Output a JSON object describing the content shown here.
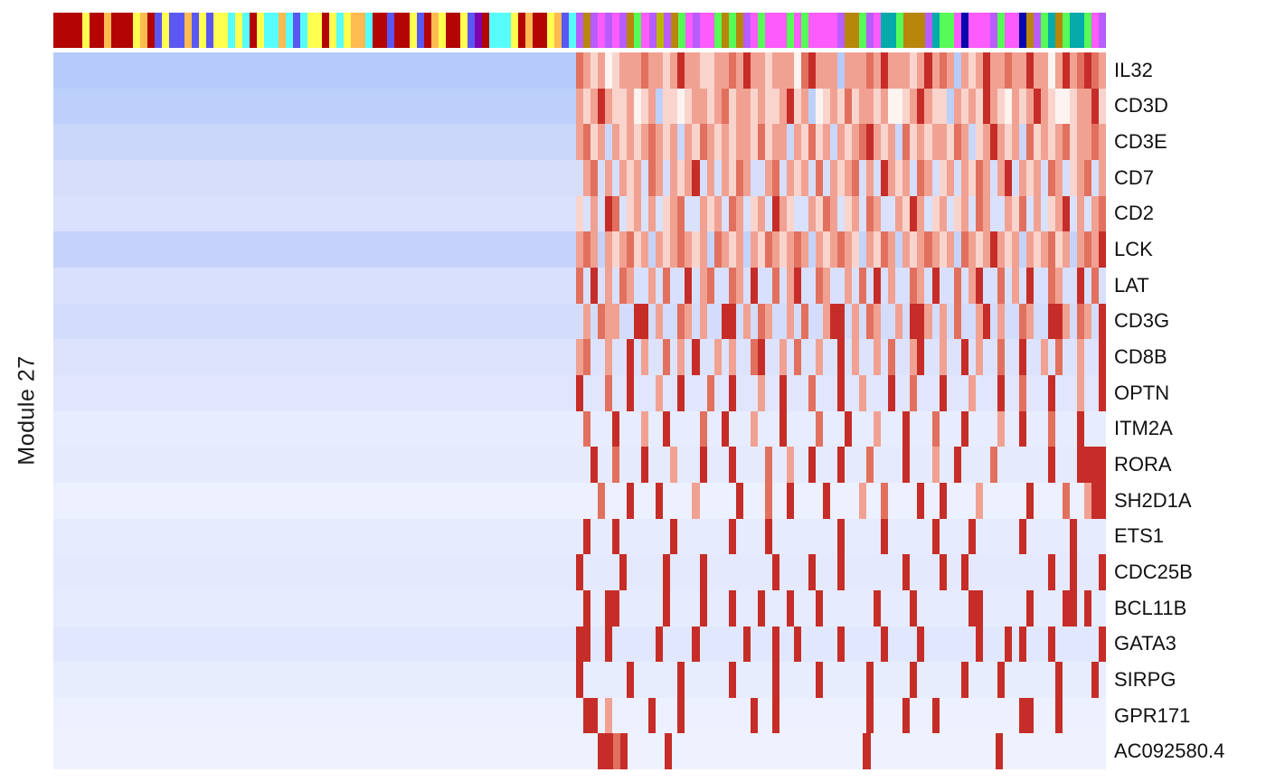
{
  "chart_data": {
    "type": "heatmap",
    "title": "",
    "xlabel": "",
    "ylabel": "Module 27",
    "legend": "none",
    "grid": "off",
    "n_columns": 145,
    "expression_start_column": 72,
    "genes": [
      "IL32",
      "CD3D",
      "CD3E",
      "CD7",
      "CD2",
      "LCK",
      "LAT",
      "CD3G",
      "CD8B",
      "OPTN",
      "ITM2A",
      "RORA",
      "SH2D1A",
      "ETS1",
      "CDC25B",
      "BCL11B",
      "GATA3",
      "SIRPG",
      "GPR171",
      "AC092580.4"
    ],
    "row_base_colors": [
      "#b7cbfa",
      "#bdd0fb",
      "#cbd6fb",
      "#d6defc",
      "#d9e1fd",
      "#c5d3fb",
      "#d9e0fd",
      "#d4dcfc",
      "#dde3fd",
      "#e1e6fd",
      "#e7ecfe",
      "#e6eafd",
      "#edf0fe",
      "#e6ebfd",
      "#e5e9fd",
      "#e7ebfe",
      "#e1e7fd",
      "#e8edfe",
      "#edf0fe",
      "#eef1fe"
    ],
    "intensity_colormap": {
      ".": "transparent",
      "w": "#fdf3f0",
      "a": "#f9d4cc",
      "b": "#f1a192",
      "c": "#e2705e",
      "d": "#c62d28"
    },
    "row_patterns": [
      "cbabwabbbcbbabdbbaabbcbdbbabbbwcdbbb.bbbcbdbbbabdbcb.babdbbcbbdbbwbdbcdcb",
      "babdbaabwab.aawabbabcabbabaabdab.wabacabbabwwabdbaa.babadbawbabdbawwabbda",
      "bcab.bababcbab.bacbababbacabb.bacab.babcdbab.cababbacb.abdbab.cababcabbcb",
      ".bc.b.bab.cb.babd.b.bacb..bc.bab.c.babc.b.dbab.cb.ab.bacb.bd.bab.cb.abc.b",
      "a.b.dc.ab.b.abc..bab.cb.ab.dba..bacb.ab.cb..badb.ab.ab.cb..bac.b.abd.b.bc",
      "bcb.babcab.babcbab.cbab.bacbabcb.babcba.bacb.babcbab.cbabdbab.babcab.bcbd",
      "c.d.b.cb..b.c..d.bc..cb.d..c.bd..cb..b.c.d.b..cb.d..c.bd..c.b.d..cb..d.c.",
      ".b.cbb..dd.b..cb.b..dd.b.cb..b.c..bdd.b.cb..b.ddb.b.c..bd.b..cb..ddb.cb.d",
      "bc..b..d.b..c.b.d..b.b..cd..b.c..b..d.b..b.c..bd..b..d.b..c..d..b.c..b..d",
      "d...c..d...b..d...c..d...b..d...c...d..b...d..c...d...b...d..c...d...b..d",
      ".c...d...b..d....c..d...b...d....c...d...b...d...c...d....b..d...c...d...",
      "..d..c...d...b...d...d....c..b..d...d...c....d...b..d....c.......d...dddd",
      "...c...d...d....b.....d...c..d....d....b..c....d..d....b......d....c..bdd",
      ".d...d.......d.......d....d.........d.....d......d....d......d......d....",
      "d.....d.....d....d.........d....d...d........d....d..d...........d..d...d",
      ".d..dd......d....d...d...d...d...d.......d....d.......dd......d....dd.d..",
      "dd..d......d....d......d...d..d.....d.....d....d.......d...d.d...d......d",
      "d......d......d......d.....d.....d......d.....d......d....d.......d....d.",
      ".dd.b.....d...d.........d..d............d....d...d...........dd...d......",
      "...ddcd.....d..........................d.................d.............."
    ],
    "annotation_bar": {
      "palette": {
        "R": "#b40505",
        "Y": "#ffff4f",
        "O": "#ffbb50",
        "B": "#5a57f2",
        "C": "#57fdfd",
        "P": "#7d05b0",
        "M": "#fb5cfb",
        "V": "#b85cfd",
        "L": "#b8860b",
        "G": "#57fb57",
        "T": "#05aaaa",
        "N": "#0508aa",
        "K": "#b8b805"
      },
      "left_runs": [
        [
          "R",
          4
        ],
        [
          "Y",
          1
        ],
        [
          "R",
          2
        ],
        [
          "O",
          1
        ],
        [
          "R",
          3
        ],
        [
          "Y",
          1
        ],
        [
          "O",
          1
        ],
        [
          "R",
          1
        ],
        [
          "B",
          1
        ],
        [
          "Y",
          1
        ],
        [
          "B",
          2
        ],
        [
          "O",
          1
        ],
        [
          "B",
          1
        ],
        [
          "Y",
          1
        ],
        [
          "B",
          1
        ],
        [
          "Y",
          2
        ],
        [
          "C",
          1
        ],
        [
          "Y",
          1
        ],
        [
          "C",
          1
        ],
        [
          "R",
          1
        ],
        [
          "Y",
          1
        ],
        [
          "C",
          2
        ],
        [
          "O",
          1
        ],
        [
          "C",
          1
        ],
        [
          "B",
          1
        ],
        [
          "C",
          1
        ],
        [
          "Y",
          2
        ],
        [
          "R",
          1
        ],
        [
          "Y",
          1
        ],
        [
          "C",
          1
        ],
        [
          "Y",
          1
        ],
        [
          "O",
          2
        ],
        [
          "C",
          1
        ],
        [
          "R",
          2
        ],
        [
          "B",
          1
        ],
        [
          "R",
          2
        ],
        [
          "Y",
          1
        ],
        [
          "B",
          1
        ],
        [
          "R",
          1
        ],
        [
          "O",
          1
        ],
        [
          "Y",
          1
        ],
        [
          "R",
          2
        ],
        [
          "Y",
          1
        ],
        [
          "B",
          1
        ],
        [
          "P",
          1
        ],
        [
          "R",
          1
        ],
        [
          "C",
          3
        ],
        [
          "Y",
          1
        ],
        [
          "R",
          1
        ],
        [
          "O",
          1
        ],
        [
          "R",
          2
        ],
        [
          "Y",
          1
        ],
        [
          "O",
          1
        ],
        [
          "B",
          1
        ],
        [
          "C",
          1
        ]
      ],
      "right_runs": [
        [
          "V",
          1
        ],
        [
          "L",
          1
        ],
        [
          "V",
          1
        ],
        [
          "M",
          1
        ],
        [
          "V",
          1
        ],
        [
          "M",
          1
        ],
        [
          "V",
          1
        ],
        [
          "L",
          1
        ],
        [
          "G",
          1
        ],
        [
          "M",
          1
        ],
        [
          "V",
          1
        ],
        [
          "K",
          1
        ],
        [
          "V",
          1
        ],
        [
          "L",
          1
        ],
        [
          "G",
          1
        ],
        [
          "M",
          1
        ],
        [
          "V",
          1
        ],
        [
          "M",
          2
        ],
        [
          "G",
          1
        ],
        [
          "L",
          1
        ],
        [
          "G",
          1
        ],
        [
          "L",
          1
        ],
        [
          "V",
          1
        ],
        [
          "M",
          1
        ],
        [
          "G",
          1
        ],
        [
          "M",
          3
        ],
        [
          "G",
          1
        ],
        [
          "M",
          1
        ],
        [
          "G",
          1
        ],
        [
          "M",
          4
        ],
        [
          "V",
          1
        ],
        [
          "L",
          2
        ],
        [
          "G",
          1
        ],
        [
          "V",
          1
        ],
        [
          "M",
          1
        ],
        [
          "T",
          2
        ],
        [
          "G",
          1
        ],
        [
          "L",
          3
        ],
        [
          "V",
          1
        ],
        [
          "T",
          1
        ],
        [
          "G",
          2
        ],
        [
          "M",
          1
        ],
        [
          "N",
          1
        ],
        [
          "M",
          3
        ],
        [
          "V",
          1
        ],
        [
          "G",
          1
        ],
        [
          "M",
          2
        ],
        [
          "N",
          1
        ],
        [
          "L",
          1
        ],
        [
          "V",
          1
        ],
        [
          "G",
          1
        ],
        [
          "T",
          1
        ],
        [
          "L",
          1
        ],
        [
          "G",
          1
        ],
        [
          "T",
          2
        ],
        [
          "G",
          1
        ],
        [
          "M",
          1
        ],
        [
          "V",
          1
        ]
      ]
    }
  }
}
